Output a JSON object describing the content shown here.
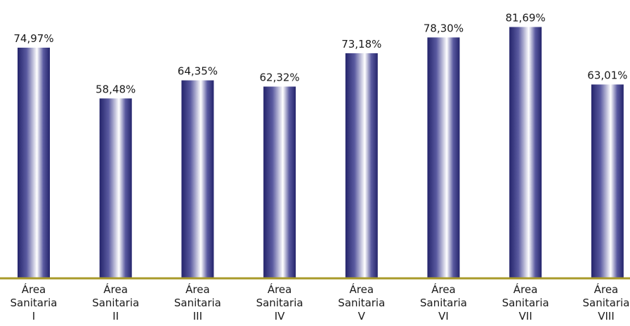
{
  "chart_data": {
    "type": "bar",
    "categories": [
      [
        "Área",
        "Sanitaria",
        "I"
      ],
      [
        "Área",
        "Sanitaria",
        "II"
      ],
      [
        "Área",
        "Sanitaria",
        "III"
      ],
      [
        "Área",
        "Sanitaria",
        "IV"
      ],
      [
        "Área",
        "Sanitaria",
        "V"
      ],
      [
        "Área",
        "Sanitaria",
        "VI"
      ],
      [
        "Área",
        "Sanitaria",
        "VII"
      ],
      [
        "Área",
        "Sanitaria",
        "VIII"
      ]
    ],
    "values": [
      74.97,
      58.48,
      64.35,
      62.32,
      73.18,
      78.3,
      81.69,
      63.01
    ],
    "data_labels": [
      "74,97%",
      "58,48%",
      "64,35%",
      "62,32%",
      "73,18%",
      "78,30%",
      "81,69%",
      "63,01%"
    ],
    "title": "",
    "xlabel": "",
    "ylabel": "",
    "ylim": [
      0,
      100
    ],
    "grid": false,
    "legend": "none",
    "colors": {
      "bar_dark": "#24246b",
      "bar_mid": "#5a5aa0",
      "bar_light": "#ffffff",
      "baseline": "#a89a2a",
      "text": "#1a1a1a"
    }
  }
}
